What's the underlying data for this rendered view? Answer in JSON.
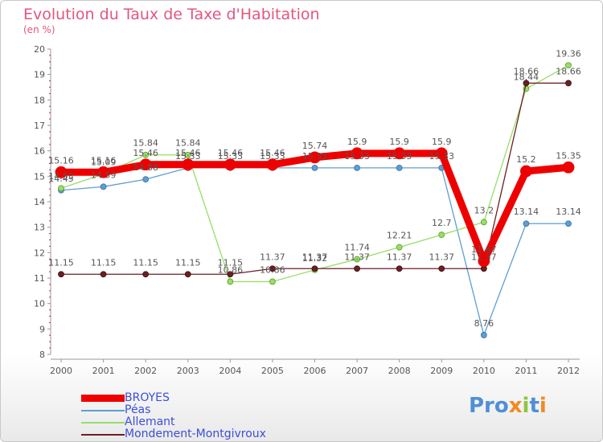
{
  "chart_data": {
    "type": "line",
    "title": "Evolution du Taux de Taxe d'Habitation",
    "subtitle": "(en %)",
    "x": [
      "2000",
      "2001",
      "2002",
      "2003",
      "2004",
      "2005",
      "2006",
      "2007",
      "2008",
      "2009",
      "2010",
      "2011",
      "2012"
    ],
    "ylim": [
      8,
      20
    ],
    "yticks": [
      8,
      9,
      10,
      11,
      12,
      13,
      14,
      15,
      16,
      17,
      18,
      19,
      20
    ],
    "grid": false,
    "legend_position": "bottom-left",
    "series": [
      {
        "name": "BROYES",
        "color": "#ee0000",
        "values": [
          15.16,
          15.16,
          15.46,
          15.46,
          15.46,
          15.46,
          15.74,
          15.9,
          15.9,
          15.9,
          11.67,
          15.2,
          15.35
        ]
      },
      {
        "name": "Péas",
        "color": "#5d9fd1",
        "values": [
          14.45,
          14.59,
          14.88,
          15.33,
          15.33,
          15.33,
          15.33,
          15.33,
          15.33,
          15.33,
          8.76,
          13.14,
          13.14
        ]
      },
      {
        "name": "Allemant",
        "color": "#99dd66",
        "values": [
          14.53,
          15.09,
          15.84,
          15.84,
          10.86,
          10.86,
          11.32,
          11.74,
          12.21,
          12.7,
          13.2,
          18.44,
          19.36
        ]
      },
      {
        "name": "Mondement-Montgivroux",
        "color": "#6b1f24",
        "values": [
          11.15,
          11.15,
          11.15,
          11.15,
          11.15,
          11.37,
          11.37,
          11.37,
          11.37,
          11.37,
          11.37,
          18.66,
          18.66
        ]
      }
    ]
  },
  "data_labels": {
    "BROYES": [
      "15.16",
      "15.16",
      "15.46",
      "15.46",
      "15.46",
      "15.46",
      "15.74",
      "15.9",
      "15.9",
      "15.9",
      "11.67",
      "15.2",
      "15.35"
    ],
    "Péas": [
      "14.45",
      "14.59",
      "14.88",
      "15.33",
      "15.33",
      "15.33",
      "15.33",
      "15.33",
      "15.33",
      "15.33",
      "8.76",
      "13.14",
      "13.14"
    ],
    "Allemant": [
      "14.53",
      "15.09",
      "15.84",
      "15.84",
      "10.86",
      "10.86",
      "11.32",
      "11.74",
      "12.21",
      "12.7",
      "13.2",
      "18.44",
      "19.36"
    ],
    "Mondement-Montgivroux": [
      "11.15",
      "11.15",
      "11.15",
      "11.15",
      "11.15",
      "11.37",
      "11.37",
      "11.37",
      "11.37",
      "11.37",
      "11.37",
      "18.66",
      "18.66"
    ]
  },
  "logo": {
    "text_parts": [
      "Pro",
      "x",
      "i",
      "t",
      "i"
    ]
  }
}
